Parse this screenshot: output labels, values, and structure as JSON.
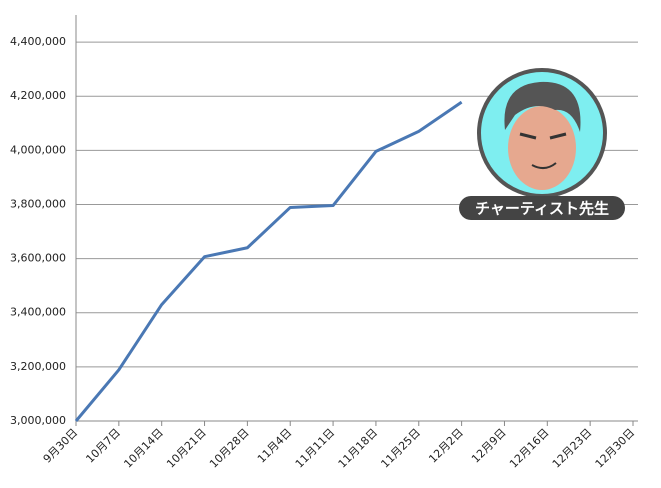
{
  "chart_data": {
    "type": "line",
    "categories": [
      "9月30日",
      "10月7日",
      "10月14日",
      "10月21日",
      "10月28日",
      "11月4日",
      "11月11日",
      "11月18日",
      "11月25日",
      "12月2日",
      "12月9日",
      "12月16日",
      "12月23日",
      "12月30日"
    ],
    "series": [
      {
        "color": "#4a78b4",
        "values": [
          3000000,
          3189000,
          3430000,
          3607000,
          3640000,
          3789000,
          3796000,
          3996000,
          4070000,
          4178000,
          null,
          null,
          null,
          null
        ]
      }
    ],
    "ylim": [
      3000000,
      4500000
    ],
    "yticks": [
      {
        "value": 3000000,
        "label": "3,000,000"
      },
      {
        "value": 3200000,
        "label": "3,200,000"
      },
      {
        "value": 3400000,
        "label": "3,400,000"
      },
      {
        "value": 3600000,
        "label": "3,600,000"
      },
      {
        "value": 3800000,
        "label": "3,800,000"
      },
      {
        "value": 4000000,
        "label": "4,000,000"
      },
      {
        "value": 4200000,
        "label": "4,200,000"
      },
      {
        "value": 4400000,
        "label": "4,400,000"
      }
    ],
    "grid": true,
    "badge_label": "チャーティスト先生"
  }
}
